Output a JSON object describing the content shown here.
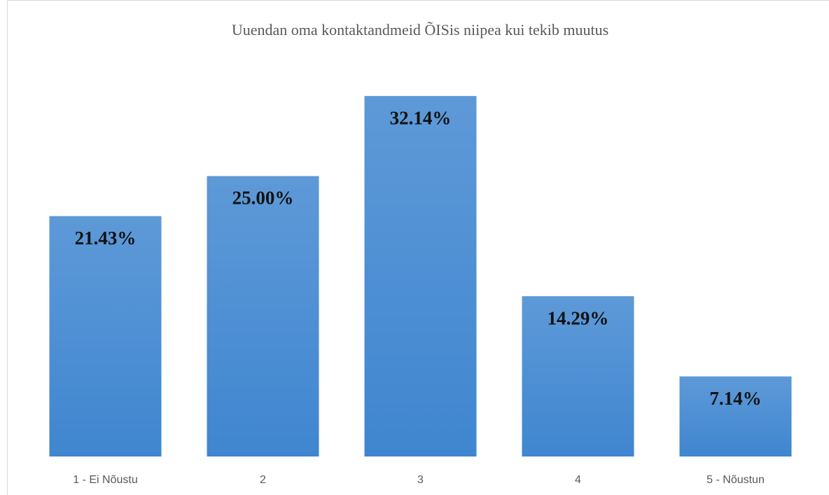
{
  "chart_data": {
    "type": "bar",
    "title": "Uuendan oma kontaktandmeid ÕISis niipea kui tekib muutus",
    "categories": [
      "1 - Ei Nõustu",
      "2",
      "3",
      "4",
      "5 - Nõustun"
    ],
    "values": [
      21.43,
      25.0,
      32.14,
      14.29,
      7.14
    ],
    "value_labels": [
      "21.43%",
      "25.00%",
      "32.14%",
      "14.29%",
      "7.14%"
    ],
    "color": "#3f86d0"
  }
}
